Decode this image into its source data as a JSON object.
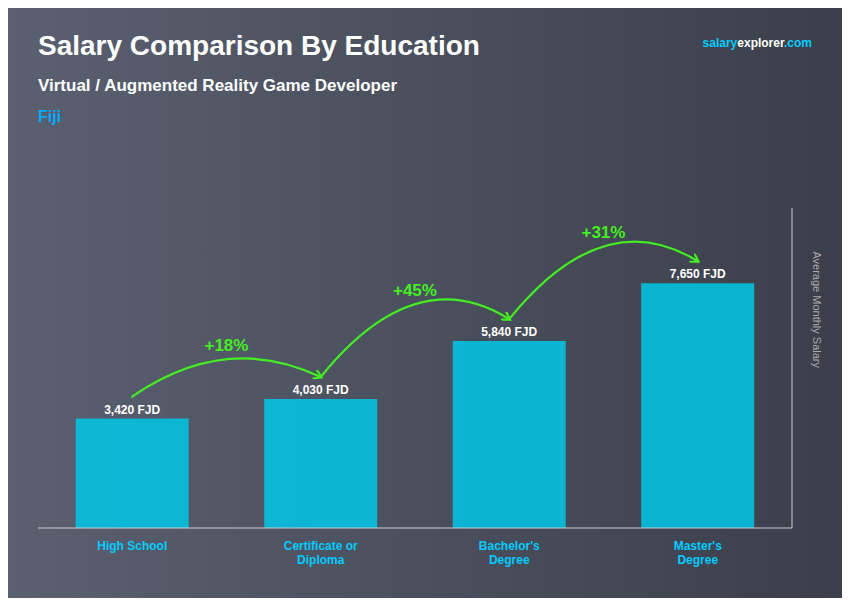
{
  "chart_data": {
    "type": "bar",
    "title": "Salary Comparison By Education",
    "subtitle": "Virtual / Augmented Reality Game Developer",
    "location": "Fiji",
    "watermark": [
      "salary",
      "explorer",
      ".com"
    ],
    "ylabel": "Average Monthly Salary",
    "categories": [
      "High School",
      "Certificate or\nDiploma",
      "Bachelor's\nDegree",
      "Master's\nDegree"
    ],
    "values": [
      3420,
      4030,
      5840,
      7650
    ],
    "value_labels": [
      "3,420 FJD",
      "4,030 FJD",
      "5,840 FJD",
      "7,650 FJD"
    ],
    "data_labels": true,
    "changes": [
      {
        "from": 0,
        "to": 1,
        "label": "+18%"
      },
      {
        "from": 1,
        "to": 2,
        "label": "+45%"
      },
      {
        "from": 2,
        "to": 3,
        "label": "+31%"
      }
    ],
    "color": "#00c8e8",
    "ylim": [
      0,
      10000
    ],
    "tick_labels": "x",
    "grid": false
  }
}
